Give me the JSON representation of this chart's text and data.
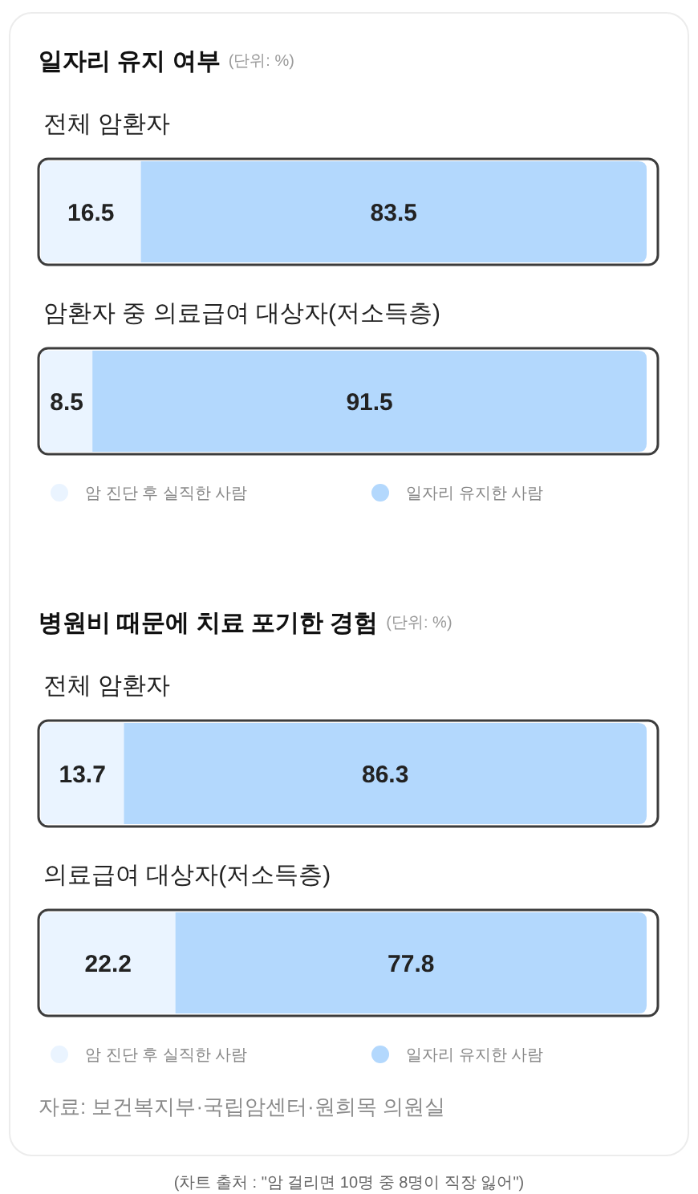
{
  "chart_data": [
    {
      "type": "bar",
      "orientation": "horizontal",
      "stacked": true,
      "title": "일자리 유지 여부",
      "subtitle": "(단위: %)",
      "categories": [
        "전체 암환자",
        "암환자 중 의료급여 대상자(저소득층)"
      ],
      "series": [
        {
          "name": "암 진단 후 실직한 사람",
          "color": "#eaf4ff",
          "values": [
            16.5,
            8.5
          ]
        },
        {
          "name": "일자리 유지한 사람",
          "color": "#b3d8fd",
          "values": [
            83.5,
            91.5
          ]
        }
      ],
      "data_labels": true,
      "legend": "bottom"
    },
    {
      "type": "bar",
      "orientation": "horizontal",
      "stacked": true,
      "title": "병원비 때문에 치료 포기한 경험",
      "subtitle": "(단위: %)",
      "categories": [
        "전체 암환자",
        "의료급여 대상자(저소득층)"
      ],
      "series": [
        {
          "name": "암 진단 후 실직한 사람",
          "color": "#eaf4ff",
          "values": [
            13.7,
            22.2
          ]
        },
        {
          "name": "일자리 유지한 사람",
          "color": "#b3d8fd",
          "values": [
            86.3,
            77.8
          ]
        }
      ],
      "data_labels": true,
      "legend": "bottom",
      "annotations": [
        "자료: 보건복지부·국립암센터·원희목 의원실",
        "(차트 출처 : \"암 걸리면 10명 중 8명이 직장 잃어\")"
      ]
    }
  ]
}
